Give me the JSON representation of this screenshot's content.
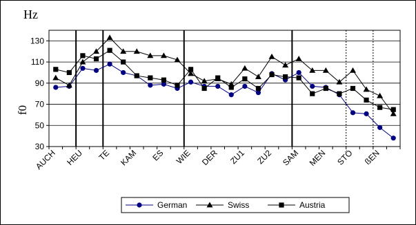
{
  "chart_data": {
    "type": "line",
    "unit_label": "Hz",
    "ylabel": "f0",
    "xlabel": "",
    "title": "",
    "ylim": [
      30,
      140
    ],
    "yticks": [
      30,
      50,
      70,
      90,
      110,
      130
    ],
    "grid": "horizontal",
    "legend_position": "bottom",
    "categories": [
      "AUCH",
      "",
      "HEU",
      "",
      "TE",
      "",
      "KAM",
      "",
      "ES",
      "",
      "WIE",
      "",
      "DER",
      "",
      "ZU1",
      "",
      "ZU2",
      "",
      "SAM",
      "",
      "MEN",
      "",
      "STÖ",
      "",
      "ßEN",
      ""
    ],
    "solid_separators_after": [
      1,
      3,
      9,
      17
    ],
    "dotted_separators_after": [
      21,
      23
    ],
    "series": [
      {
        "name": "German",
        "marker": "circle",
        "color": "#000080",
        "values": [
          86,
          87,
          104,
          102,
          108,
          100,
          97,
          88,
          89,
          85,
          91,
          87,
          87,
          79,
          87,
          81,
          99,
          93,
          100,
          87,
          86,
          79,
          62,
          61,
          48,
          38
        ]
      },
      {
        "name": "Swiss",
        "marker": "triangle",
        "color": "#000000",
        "values": [
          95,
          88,
          110,
          120,
          133,
          120,
          120,
          116,
          116,
          112,
          99,
          92,
          94,
          89,
          104,
          96,
          115,
          107,
          113,
          102,
          102,
          91,
          102,
          84,
          78,
          61
        ]
      },
      {
        "name": "Austria",
        "marker": "square",
        "color": "#000000",
        "values": [
          103,
          100,
          116,
          113,
          121,
          110,
          97,
          95,
          93,
          88,
          103,
          85,
          95,
          86,
          94,
          85,
          98,
          96,
          95,
          80,
          85,
          80,
          85,
          74,
          67,
          65
        ]
      }
    ]
  }
}
